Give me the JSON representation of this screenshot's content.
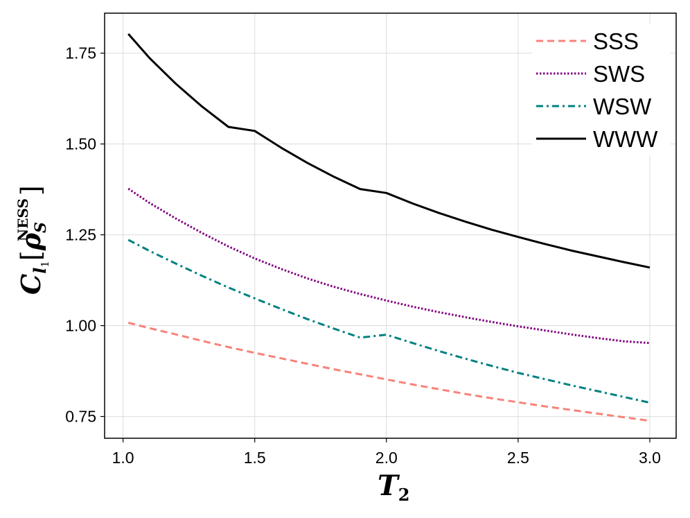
{
  "chart_data": {
    "type": "line",
    "title": "",
    "xlabel": {
      "main": "T",
      "sub": "2"
    },
    "ylabel": {
      "main": "C",
      "sub": "l",
      "subsub": "1",
      "bracket_open": "[",
      "rho": "ρ",
      "rho_sub": "S",
      "rho_sup": "NESS",
      "bracket_close": "]"
    },
    "xlim": [
      0.93,
      3.1
    ],
    "ylim": [
      0.69,
      1.86
    ],
    "xticks": [
      1.0,
      1.5,
      2.0,
      2.5,
      3.0
    ],
    "xtick_labels": [
      "1.0",
      "1.5",
      "2.0",
      "2.5",
      "3.0"
    ],
    "yticks": [
      0.75,
      1.0,
      1.25,
      1.5,
      1.75
    ],
    "ytick_labels": [
      "0.75",
      "1.00",
      "1.25",
      "1.50",
      "1.75"
    ],
    "grid": true,
    "legend_position": "top-right",
    "x": [
      1.02,
      1.1,
      1.2,
      1.3,
      1.4,
      1.5,
      1.6,
      1.7,
      1.8,
      1.9,
      2.0,
      2.1,
      2.2,
      2.3,
      2.4,
      2.5,
      2.6,
      2.7,
      2.8,
      2.9,
      3.0
    ],
    "series": [
      {
        "name": "SSS",
        "style": "dashed",
        "color": "#f88379",
        "values": [
          1.008,
          0.993,
          0.976,
          0.958,
          0.941,
          0.925,
          0.91,
          0.895,
          0.88,
          0.866,
          0.852,
          0.838,
          0.825,
          0.812,
          0.8,
          0.789,
          0.778,
          0.768,
          0.758,
          0.748,
          0.738
        ]
      },
      {
        "name": "SWS",
        "style": "dotted",
        "color": "#800080",
        "values": [
          1.377,
          1.338,
          1.295,
          1.255,
          1.218,
          1.185,
          1.156,
          1.13,
          1.107,
          1.087,
          1.069,
          1.052,
          1.037,
          1.023,
          1.01,
          0.998,
          0.987,
          0.976,
          0.966,
          0.957,
          0.952
        ]
      },
      {
        "name": "WSW",
        "style": "dashdot",
        "color": "#008080",
        "values": [
          1.236,
          1.206,
          1.171,
          1.137,
          1.105,
          1.075,
          1.046,
          1.018,
          0.992,
          0.967,
          0.975,
          0.952,
          0.93,
          0.909,
          0.889,
          0.87,
          0.853,
          0.836,
          0.82,
          0.804,
          0.788
        ]
      },
      {
        "name": "WWW",
        "style": "solid",
        "color": "#000000",
        "values": [
          1.803,
          1.737,
          1.666,
          1.603,
          1.547,
          1.536,
          1.49,
          1.448,
          1.41,
          1.376,
          1.365,
          1.336,
          1.31,
          1.286,
          1.264,
          1.244,
          1.225,
          1.207,
          1.191,
          1.175,
          1.16
        ]
      }
    ]
  }
}
